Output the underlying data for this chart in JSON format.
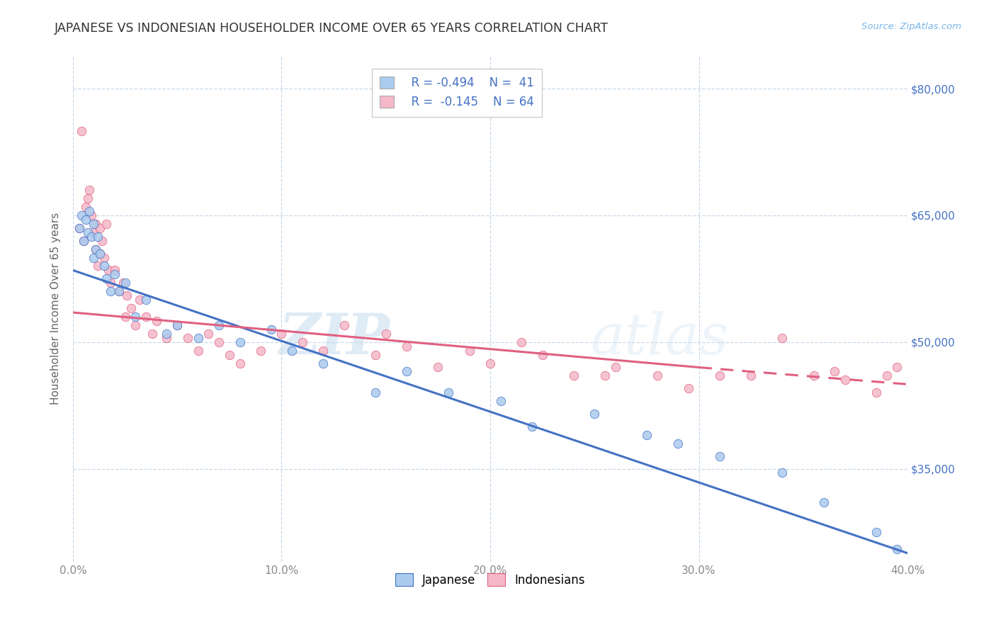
{
  "title": "JAPANESE VS INDONESIAN HOUSEHOLDER INCOME OVER 65 YEARS CORRELATION CHART",
  "source": "Source: ZipAtlas.com",
  "ylabel": "Householder Income Over 65 years",
  "xlim": [
    0.0,
    40.0
  ],
  "ylim": [
    24000,
    84000
  ],
  "yticks": [
    35000,
    50000,
    65000,
    80000
  ],
  "ytick_labels": [
    "$35,000",
    "$50,000",
    "$65,000",
    "$80,000"
  ],
  "xticks": [
    0.0,
    10.0,
    20.0,
    30.0,
    40.0
  ],
  "xtick_labels": [
    "0.0%",
    "10.0%",
    "20.0%",
    "30.0%",
    "40.0%"
  ],
  "japanese_color": "#aacbee",
  "indonesian_color": "#f4b8c8",
  "japanese_line_color": "#4472c4",
  "indonesian_line_color": "#e06080",
  "legend_r1": "R = -0.494",
  "legend_n1": "N =  41",
  "legend_r2": "R =  -0.145",
  "legend_n2": "N = 64",
  "watermark_zip": "ZIP",
  "watermark_atlas": "atlas",
  "background_color": "#ffffff",
  "grid_color": "#c8d8e8",
  "japanese_x": [
    0.3,
    0.4,
    0.5,
    0.6,
    0.7,
    0.8,
    0.9,
    1.0,
    1.0,
    1.1,
    1.2,
    1.3,
    1.5,
    1.6,
    1.8,
    2.0,
    2.2,
    2.5,
    3.0,
    3.5,
    4.5,
    5.0,
    6.0,
    7.0,
    8.0,
    9.5,
    10.5,
    12.0,
    14.5,
    16.0,
    18.0,
    20.5,
    22.0,
    25.0,
    27.5,
    29.0,
    31.0,
    34.0,
    36.0,
    38.5,
    39.5
  ],
  "japanese_y": [
    63500,
    65000,
    62000,
    64500,
    63000,
    65500,
    62500,
    64000,
    60000,
    61000,
    62500,
    60500,
    59000,
    57500,
    56000,
    58000,
    56000,
    57000,
    53000,
    55000,
    51000,
    52000,
    50500,
    52000,
    50000,
    51500,
    49000,
    47500,
    44000,
    46500,
    44000,
    43000,
    40000,
    41500,
    39000,
    38000,
    36500,
    34500,
    31000,
    27500,
    25500
  ],
  "indonesian_x": [
    0.3,
    0.4,
    0.5,
    0.6,
    0.7,
    0.8,
    0.9,
    1.0,
    1.1,
    1.1,
    1.2,
    1.3,
    1.3,
    1.4,
    1.5,
    1.6,
    1.7,
    1.8,
    2.0,
    2.2,
    2.4,
    2.5,
    2.6,
    2.8,
    3.0,
    3.2,
    3.5,
    3.8,
    4.0,
    4.5,
    5.0,
    5.5,
    6.0,
    6.5,
    7.0,
    7.5,
    8.0,
    9.0,
    10.0,
    11.0,
    12.0,
    13.0,
    14.5,
    15.0,
    16.0,
    17.5,
    19.0,
    20.0,
    21.5,
    22.5,
    24.0,
    25.5,
    26.0,
    28.0,
    29.5,
    31.0,
    32.5,
    34.0,
    35.5,
    36.5,
    37.0,
    38.5,
    39.0,
    39.5
  ],
  "indonesian_y": [
    63500,
    75000,
    62000,
    66000,
    67000,
    68000,
    65000,
    63000,
    64000,
    61000,
    59000,
    63500,
    60500,
    62000,
    60000,
    64000,
    58500,
    57000,
    58500,
    56000,
    57000,
    53000,
    55500,
    54000,
    52000,
    55000,
    53000,
    51000,
    52500,
    50500,
    52000,
    50500,
    49000,
    51000,
    50000,
    48500,
    47500,
    49000,
    51000,
    50000,
    49000,
    52000,
    48500,
    51000,
    49500,
    47000,
    49000,
    47500,
    50000,
    48500,
    46000,
    46000,
    47000,
    46000,
    44500,
    46000,
    46000,
    50500,
    46000,
    46500,
    45500,
    44000,
    46000,
    47000
  ],
  "j_line_x0": 0.0,
  "j_line_y0": 58500,
  "j_line_x1": 40.0,
  "j_line_y1": 25000,
  "i_line_x0": 0.0,
  "i_line_y0": 53500,
  "i_line_x1": 30.0,
  "i_line_y1": 47000,
  "i_line_dash_x0": 30.0,
  "i_line_dash_y0": 47000,
  "i_line_dash_x1": 40.0,
  "i_line_dash_y1": 45000
}
